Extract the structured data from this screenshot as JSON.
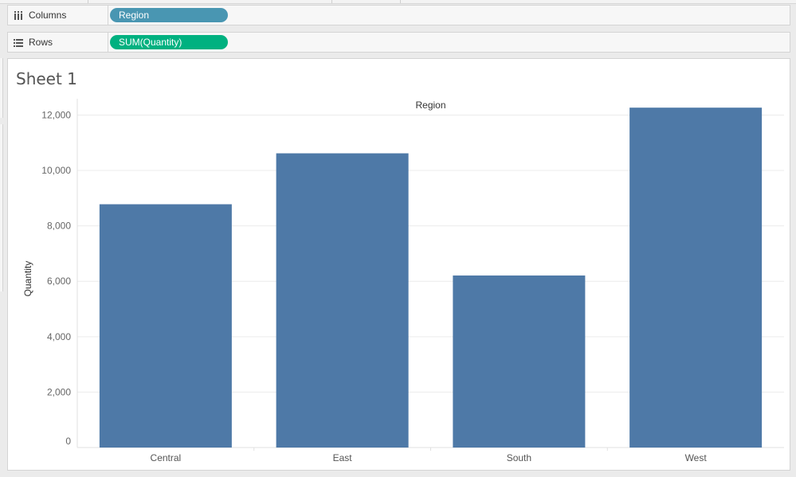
{
  "shelves": {
    "columns": {
      "label": "Columns",
      "pill": "Region",
      "icon": "columns-icon",
      "pill_color": "#4996b2"
    },
    "rows": {
      "label": "Rows",
      "pill": "SUM(Quantity)",
      "icon": "rows-icon",
      "pill_color": "#00b180"
    }
  },
  "sheet": {
    "title": "Sheet 1"
  },
  "chart_data": {
    "type": "bar",
    "title": "",
    "header": "Region",
    "xlabel": "",
    "ylabel": "Quantity",
    "categories": [
      "Central",
      "East",
      "South",
      "West"
    ],
    "values": [
      8780,
      10618,
      6209,
      12266
    ],
    "yticks": [
      "0",
      "2,000",
      "4,000",
      "6,000",
      "8,000",
      "10,000",
      "12,000"
    ],
    "ylim": [
      0,
      12000
    ],
    "grid": true,
    "bar_color": "#4e79a7"
  }
}
